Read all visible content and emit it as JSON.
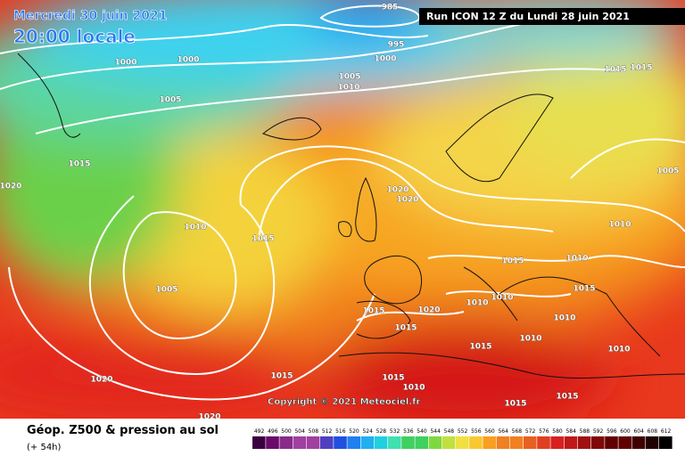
{
  "header": {
    "date": "Mercredi 30 juin 2021",
    "time": "20:00 locale",
    "run": "Run ICON 12 Z du Lundi 28 juin 2021"
  },
  "isobars": [
    "985",
    "995",
    "1000",
    "1000",
    "1000",
    "1005",
    "1010",
    "1005",
    "1015",
    "1015",
    "1015",
    "1020",
    "1005",
    "1020",
    "1020",
    "1010",
    "1015",
    "1010",
    "1015",
    "1010",
    "1005",
    "1015",
    "1010",
    "1010",
    "1015",
    "1020",
    "1015",
    "1010",
    "1015",
    "1010",
    "1015",
    "1020",
    "1015",
    "1010",
    "1020",
    "1010",
    "1015",
    "1015"
  ],
  "copyright": "Copyright © 2021 Meteociel.fr",
  "footer": {
    "title": "Géop. Z500 & pression au sol",
    "lead": "(+ 54h)"
  },
  "scale": [
    492,
    496,
    500,
    504,
    508,
    512,
    516,
    520,
    524,
    528,
    532,
    536,
    540,
    544,
    548,
    552,
    556,
    560,
    564,
    568,
    572,
    576,
    580,
    584,
    588,
    592,
    596,
    600,
    604,
    608,
    612
  ]
}
